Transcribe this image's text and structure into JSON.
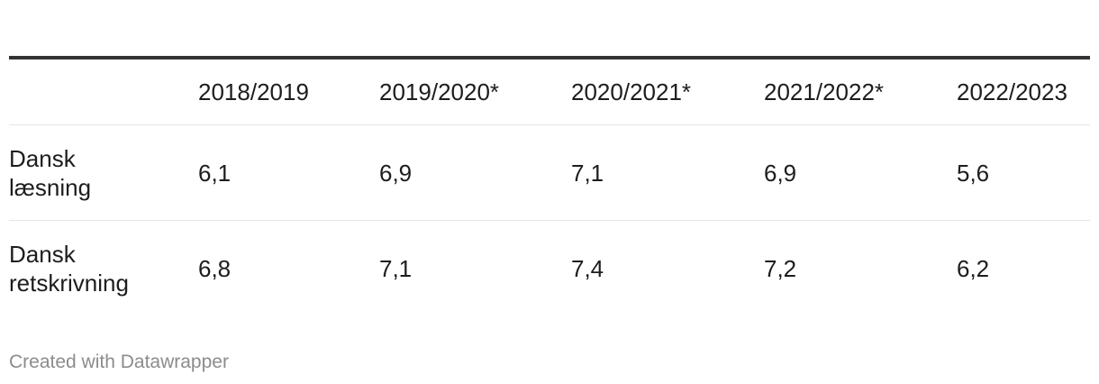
{
  "chart_data": {
    "type": "table",
    "columns": [
      "",
      "2018/2019",
      "2019/2020*",
      "2020/2021*",
      "2021/2022*",
      "2022/2023"
    ],
    "rows": [
      {
        "label_lines": [
          "Dansk",
          "læsning"
        ],
        "values": [
          "6,1",
          "6,9",
          "7,1",
          "6,9",
          "5,6"
        ]
      },
      {
        "label_lines": [
          "Dansk",
          "retskrivning"
        ],
        "values": [
          "6,8",
          "7,1",
          "7,4",
          "7,2",
          "6,2"
        ]
      }
    ]
  },
  "footer": {
    "credit": "Created with Datawrapper"
  }
}
